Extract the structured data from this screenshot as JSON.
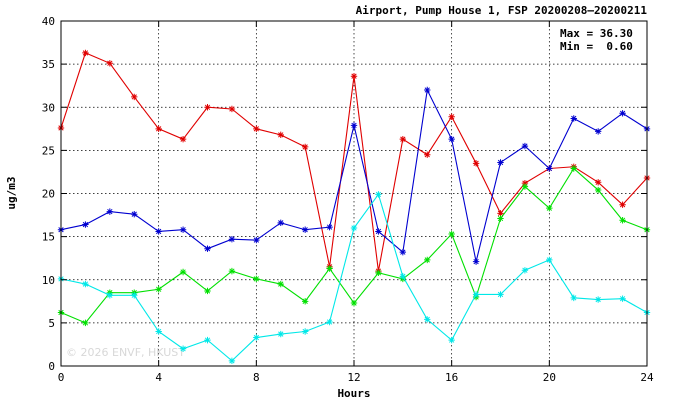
{
  "chart_data": {
    "type": "line",
    "title": "Airport, Pump House 1, FSP 20200208–20200211",
    "xlabel": "Hours",
    "ylabel": "ug/m3",
    "xlim": [
      0,
      24
    ],
    "ylim": [
      0,
      40
    ],
    "xticks": [
      0,
      4,
      8,
      12,
      16,
      20,
      24
    ],
    "yticks": [
      0,
      5,
      10,
      15,
      20,
      25,
      30,
      35,
      40
    ],
    "grid": true,
    "stats": {
      "max": "Max = 36.30",
      "min": "Min =  0.60"
    },
    "watermark": "© 2026  ENVF, HKUST",
    "x": [
      0,
      1,
      2,
      3,
      4,
      5,
      6,
      7,
      8,
      9,
      10,
      11,
      12,
      13,
      14,
      15,
      16,
      17,
      18,
      19,
      20,
      21,
      22,
      23,
      24
    ],
    "series": [
      {
        "color": "#e00000",
        "values": [
          27.6,
          36.3,
          35.1,
          31.2,
          27.5,
          26.3,
          30.0,
          29.8,
          27.5,
          26.8,
          25.4,
          11.5,
          33.6,
          11.0,
          26.3,
          24.5,
          28.9,
          23.5,
          17.7,
          21.2,
          22.9,
          23.1,
          21.3,
          18.7,
          21.8
        ]
      },
      {
        "color": "#0000d0",
        "values": [
          15.8,
          16.4,
          17.9,
          17.6,
          15.6,
          15.8,
          13.6,
          14.7,
          14.6,
          16.6,
          15.8,
          16.1,
          27.9,
          15.6,
          13.2,
          32.0,
          26.3,
          12.1,
          23.6,
          25.5,
          22.9,
          28.7,
          27.2,
          29.3,
          27.5
        ]
      },
      {
        "color": "#00e000",
        "values": [
          6.2,
          5.0,
          8.5,
          8.5,
          8.9,
          10.9,
          8.7,
          11.0,
          10.1,
          9.5,
          7.5,
          11.3,
          7.3,
          10.8,
          10.1,
          12.3,
          15.3,
          8.0,
          17.1,
          20.8,
          18.3,
          22.9,
          20.4,
          16.9,
          15.8
        ]
      },
      {
        "color": "#00e8e8",
        "values": [
          10.1,
          9.5,
          8.2,
          8.2,
          4.0,
          2.0,
          3.0,
          0.6,
          3.3,
          3.7,
          4.0,
          5.1,
          16.0,
          19.9,
          10.4,
          5.4,
          3.0,
          8.3,
          8.3,
          11.1,
          12.3,
          7.9,
          7.7,
          7.8,
          6.2
        ]
      }
    ]
  }
}
